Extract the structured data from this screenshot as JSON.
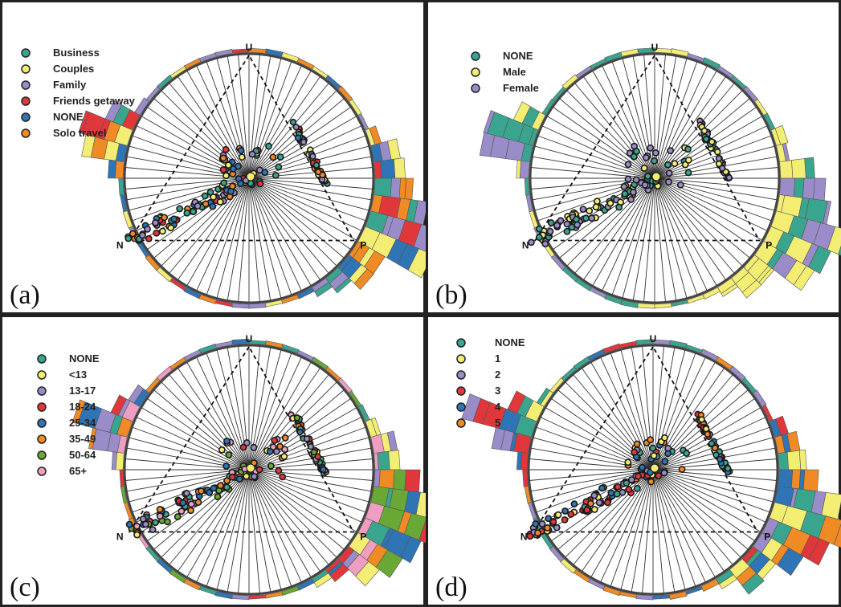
{
  "figure": {
    "vertex_labels": {
      "top": "U",
      "left": "N",
      "right": "P"
    },
    "colors": {
      "teal": "#3aa58f",
      "yellow": "#f3ee73",
      "purple": "#9a8cc8",
      "red": "#e0373b",
      "blue": "#2f74b5",
      "orange": "#f08a24",
      "green": "#69a834",
      "pink": "#ef9ec2",
      "frame": "#222222",
      "spoke": "#333333"
    }
  },
  "chart_data": [
    {
      "type": "scatter",
      "panel_label": "(a)",
      "legend": [
        {
          "label": "Business",
          "color": "#3aa58f"
        },
        {
          "label": "Couples",
          "color": "#f3ee73"
        },
        {
          "label": "Family",
          "color": "#9a8cc8"
        },
        {
          "label": "Friends getaway",
          "color": "#e0373b"
        },
        {
          "label": "NONE",
          "color": "#2f74b5"
        },
        {
          "label": "Solo travel",
          "color": "#f08a24"
        }
      ]
    },
    {
      "type": "scatter",
      "panel_label": "(b)",
      "legend": [
        {
          "label": "NONE",
          "color": "#3aa58f"
        },
        {
          "label": "Male",
          "color": "#f3ee73"
        },
        {
          "label": "Female",
          "color": "#9a8cc8"
        }
      ]
    },
    {
      "type": "scatter",
      "panel_label": "(c)",
      "legend": [
        {
          "label": "NONE",
          "color": "#3aa58f"
        },
        {
          "label": "<13",
          "color": "#f3ee73"
        },
        {
          "label": "13-17",
          "color": "#9a8cc8"
        },
        {
          "label": "18-24",
          "color": "#e0373b"
        },
        {
          "label": "25-34",
          "color": "#2f74b5"
        },
        {
          "label": "35-49",
          "color": "#f08a24"
        },
        {
          "label": "50-64",
          "color": "#69a834"
        },
        {
          "label": "65+",
          "color": "#ef9ec2"
        }
      ]
    },
    {
      "type": "scatter",
      "panel_label": "(d)",
      "legend": [
        {
          "label": "NONE",
          "color": "#3aa58f"
        },
        {
          "label": "1",
          "color": "#f3ee73"
        },
        {
          "label": "2",
          "color": "#9a8cc8"
        },
        {
          "label": "3",
          "color": "#e0373b"
        },
        {
          "label": "4",
          "color": "#2f74b5"
        },
        {
          "label": "5",
          "color": "#f08a24"
        }
      ]
    }
  ]
}
